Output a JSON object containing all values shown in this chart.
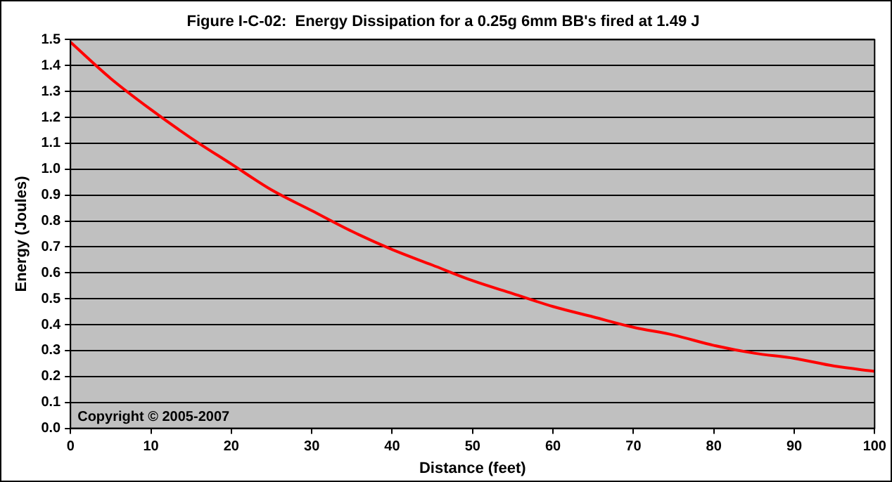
{
  "chart_data": {
    "type": "line",
    "title": "Figure I-C-02:  Energy Dissipation for a 0.25g 6mm BB's fired at 1.49 J",
    "xlabel": "Distance (feet)",
    "ylabel": "Energy (Joules)",
    "x": [
      0,
      5,
      10,
      15,
      20,
      25,
      30,
      35,
      40,
      45,
      50,
      55,
      60,
      65,
      70,
      75,
      80,
      85,
      90,
      95,
      100
    ],
    "series": [
      {
        "color": "#ff0000",
        "values": [
          1.49,
          1.35,
          1.23,
          1.12,
          1.02,
          0.92,
          0.84,
          0.76,
          0.69,
          0.63,
          0.57,
          0.52,
          0.47,
          0.43,
          0.39,
          0.36,
          0.32,
          0.29,
          0.27,
          0.24,
          0.22
        ]
      }
    ],
    "xlim": [
      0,
      100
    ],
    "xticks": [
      0,
      10,
      20,
      30,
      40,
      50,
      60,
      70,
      80,
      90,
      100
    ],
    "ylim": [
      0,
      1.5
    ],
    "yticks": [
      {
        "value": 0,
        "label": "0.0"
      },
      {
        "value": 0.1,
        "label": "0.1"
      },
      {
        "value": 0.2,
        "label": "0.2"
      },
      {
        "value": 0.3,
        "label": "0.3"
      },
      {
        "value": 0.4,
        "label": "0.4"
      },
      {
        "value": 0.5,
        "label": "0.5"
      },
      {
        "value": 0.6,
        "label": "0.6"
      },
      {
        "value": 0.7,
        "label": "0.7"
      },
      {
        "value": 0.8,
        "label": "0.8"
      },
      {
        "value": 0.9,
        "label": "0.9"
      },
      {
        "value": 1,
        "label": "1.0"
      },
      {
        "value": 1.1,
        "label": "1.1"
      },
      {
        "value": 1.2,
        "label": "1.2"
      },
      {
        "value": 1.3,
        "label": "1.3"
      },
      {
        "value": 1.4,
        "label": "1.4"
      },
      {
        "value": 1.5,
        "label": "1.5"
      }
    ],
    "grid": "y",
    "marker": "none",
    "line_style": "solid",
    "legend": false,
    "annotations": [
      "Copyright © 2005-2007"
    ]
  }
}
